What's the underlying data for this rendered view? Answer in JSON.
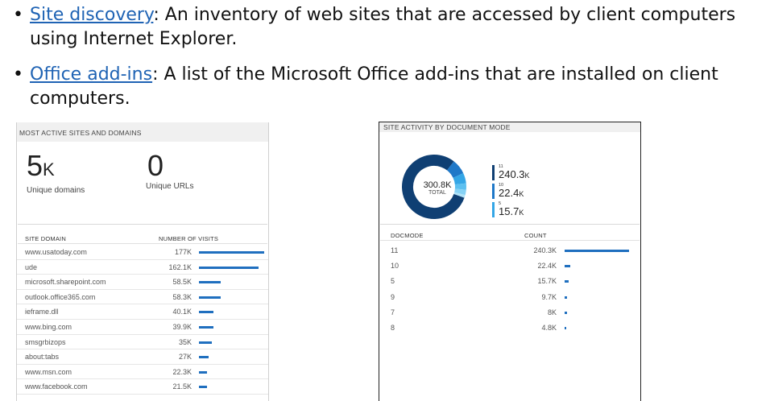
{
  "bullets": [
    {
      "link": "Site discovery",
      "text": ": An inventory of web sites that are accessed by client computers using Internet Explorer."
    },
    {
      "link": "Office add-ins",
      "text": ": A list of the Microsoft Office add-ins that are installed on client computers."
    }
  ],
  "left_panel": {
    "title": "MOST ACTIVE SITES AND DOMAINS",
    "stat1": {
      "value": "5",
      "unit": "K",
      "label": "Unique domains"
    },
    "stat2": {
      "value": "0",
      "label": "Unique URLs"
    },
    "col1": "SITE DOMAIN",
    "col2": "NUMBER OF VISITS",
    "bar_color": "#1f6fbf",
    "rows": [
      {
        "domain": "www.usatoday.com",
        "visits": "177K",
        "value": 177
      },
      {
        "domain": "ude",
        "visits": "162.1K",
        "value": 162.1
      },
      {
        "domain": "microsoft.sharepoint.com",
        "visits": "58.5K",
        "value": 58.5
      },
      {
        "domain": "outlook.office365.com",
        "visits": "58.3K",
        "value": 58.3
      },
      {
        "domain": "ieframe.dll",
        "visits": "40.1K",
        "value": 40.1
      },
      {
        "domain": "www.bing.com",
        "visits": "39.9K",
        "value": 39.9
      },
      {
        "domain": "smsgrbizops",
        "visits": "35K",
        "value": 35
      },
      {
        "domain": "about:tabs",
        "visits": "27K",
        "value": 27
      },
      {
        "domain": "www.msn.com",
        "visits": "22.3K",
        "value": 22.3
      },
      {
        "domain": "www.facebook.com",
        "visits": "21.5K",
        "value": 21.5
      }
    ]
  },
  "right_panel": {
    "title": "SITE ACTIVITY BY DOCUMENT MODE",
    "donut_total_value": "300.8K",
    "donut_total_label": "TOTAL",
    "legend": [
      {
        "mode": "11",
        "value": "240.3",
        "unit": "K",
        "color": "#0f3f73"
      },
      {
        "mode": "10",
        "value": "22.4",
        "unit": "K",
        "color": "#1f78c8"
      },
      {
        "mode": "5",
        "value": "15.7",
        "unit": "K",
        "color": "#34a6e6"
      }
    ],
    "donut_slices": [
      {
        "mode": "11",
        "value": 240.3,
        "color": "#0f3f73"
      },
      {
        "mode": "10",
        "value": 22.4,
        "color": "#1f78c8"
      },
      {
        "mode": "5",
        "value": 15.7,
        "color": "#34a6e6"
      },
      {
        "mode": "9",
        "value": 9.7,
        "color": "#5cc0f0"
      },
      {
        "mode": "7",
        "value": 8,
        "color": "#86d2f5"
      },
      {
        "mode": "8",
        "value": 4.8,
        "color": "#b0e2f8"
      }
    ],
    "col1": "DOCMODE",
    "col2": "COUNT",
    "bar_color": "#1f6fbf",
    "rows": [
      {
        "mode": "11",
        "count": "240.3K",
        "value": 240.3
      },
      {
        "mode": "10",
        "count": "22.4K",
        "value": 22.4
      },
      {
        "mode": "5",
        "count": "15.7K",
        "value": 15.7
      },
      {
        "mode": "9",
        "count": "9.7K",
        "value": 9.7
      },
      {
        "mode": "7",
        "count": "8K",
        "value": 8
      },
      {
        "mode": "8",
        "count": "4.8K",
        "value": 4.8
      }
    ]
  }
}
